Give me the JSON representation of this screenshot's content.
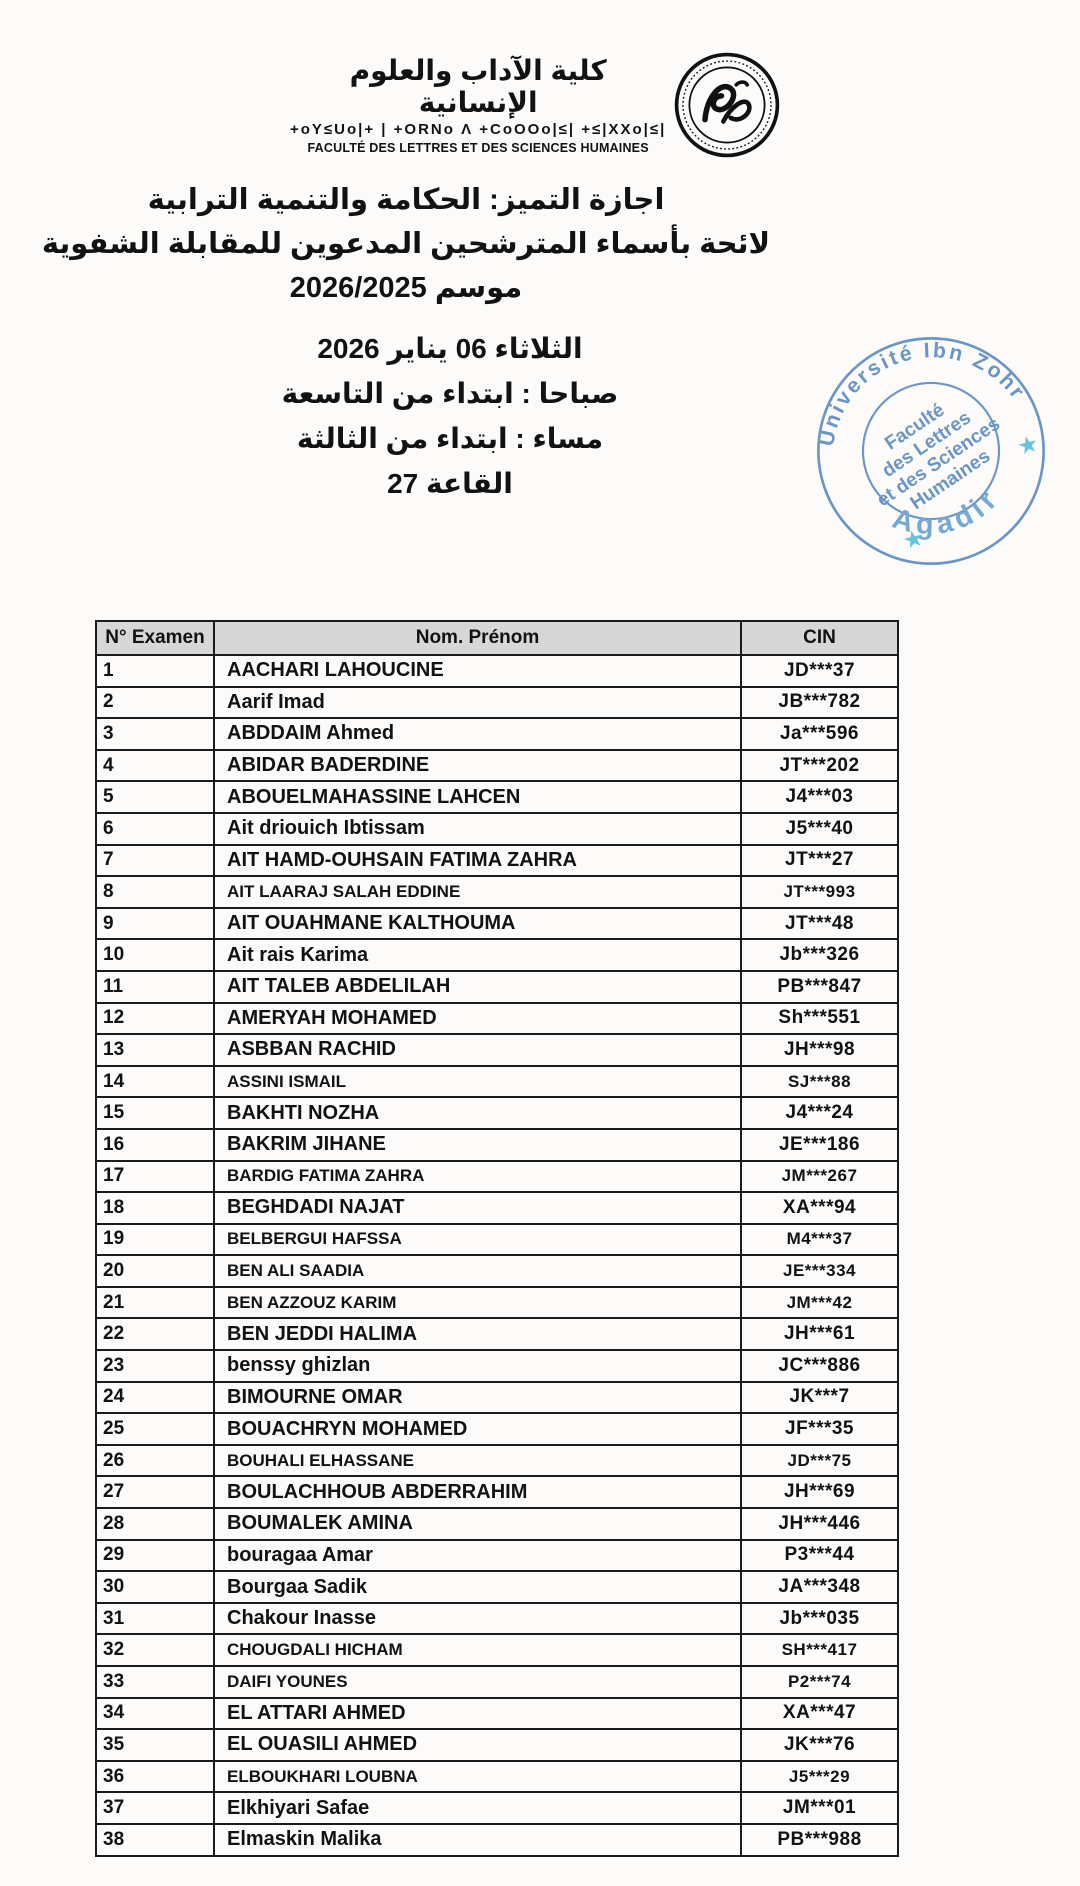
{
  "header": {
    "arabic_title": "كلية الآداب والعلوم الإنسانية",
    "tifinagh_line": "+oY≤Uo|+ | +ORNo Λ +CoOOo|≤| +≤|XXo|≤|",
    "french_title": "FACULTÉ DES LETTRES ET DES SCIENCES HUMAINES"
  },
  "announcement": {
    "line1": "اجازة التميز: الحكامة والتنمية الترابية",
    "line2": "لائحة بأسماء المترشحين المدعوين للمقابلة الشفوية",
    "line3": "موسم 2026/2025"
  },
  "schedule": {
    "date": "الثلاثاء 06 يناير 2026",
    "morning": "صباحا : ابتداء من التاسعة",
    "evening": "مساء : ابتداء من الثالثة",
    "room": "القاعة 27"
  },
  "stamp": {
    "top_text": "Université Ibn Zohr",
    "bottom_text": "Agadir",
    "center_lines": [
      "Faculté",
      "des Lettres",
      "et des Sciences",
      "Humaines"
    ],
    "color": "#4a80bd",
    "star_color": "#45b7dc"
  },
  "table": {
    "headers": [
      "N° Examen",
      "Nom. Prénom",
      "CIN"
    ],
    "rows": [
      {
        "n": "1",
        "name": "AACHARI LAHOUCINE",
        "cin": "JD***37"
      },
      {
        "n": "2",
        "name": "Aarif Imad",
        "cin": "JB***782"
      },
      {
        "n": "3",
        "name": "ABDDAIM Ahmed",
        "cin": "Ja***596"
      },
      {
        "n": "4",
        "name": "ABIDAR BADERDINE",
        "cin": "JT***202"
      },
      {
        "n": "5",
        "name": "ABOUELMAHASSINE LAHCEN",
        "cin": "J4***03"
      },
      {
        "n": "6",
        "name": "Ait driouich Ibtissam",
        "cin": "J5***40"
      },
      {
        "n": "7",
        "name": "AIT HAMD-OUHSAIN FATIMA ZAHRA",
        "cin": "JT***27"
      },
      {
        "n": "8",
        "name": "AIT LAARAJ SALAH EDDINE",
        "cin": "JT***993",
        "compact": true
      },
      {
        "n": "9",
        "name": "AIT OUAHMANE KALTHOUMA",
        "cin": "JT***48"
      },
      {
        "n": "10",
        "name": "Ait rais Karima",
        "cin": "Jb***326"
      },
      {
        "n": "11",
        "name": "AIT TALEB ABDELILAH",
        "cin": "PB***847"
      },
      {
        "n": "12",
        "name": "AMERYAH MOHAMED",
        "cin": "Sh***551"
      },
      {
        "n": "13",
        "name": "ASBBAN RACHID",
        "cin": "JH***98"
      },
      {
        "n": "14",
        "name": "ASSINI ISMAIL",
        "cin": "SJ***88",
        "compact": true
      },
      {
        "n": "15",
        "name": "BAKHTI NOZHA",
        "cin": "J4***24"
      },
      {
        "n": "16",
        "name": "BAKRIM JIHANE",
        "cin": "JE***186"
      },
      {
        "n": "17",
        "name": "BARDIG FATIMA ZAHRA",
        "cin": "JM***267",
        "compact": true
      },
      {
        "n": "18",
        "name": "BEGHDADI NAJAT",
        "cin": "XA***94"
      },
      {
        "n": "19",
        "name": "BELBERGUI HAFSSA",
        "cin": "M4***37",
        "compact": true
      },
      {
        "n": "20",
        "name": "BEN ALI SAADIA",
        "cin": "JE***334",
        "compact": true
      },
      {
        "n": "21",
        "name": "BEN AZZOUZ KARIM",
        "cin": "JM***42",
        "compact": true
      },
      {
        "n": "22",
        "name": "BEN JEDDI HALIMA",
        "cin": "JH***61"
      },
      {
        "n": "23",
        "name": "benssy ghizlan",
        "cin": "JC***886"
      },
      {
        "n": "24",
        "name": "BIMOURNE OMAR",
        "cin": "JK***7"
      },
      {
        "n": "25",
        "name": "BOUACHRYN MOHAMED",
        "cin": "JF***35"
      },
      {
        "n": "26",
        "name": "BOUHALI ELHASSANE",
        "cin": "JD***75",
        "compact": true
      },
      {
        "n": "27",
        "name": "BOULACHHOUB ABDERRAHIM",
        "cin": "JH***69"
      },
      {
        "n": "28",
        "name": "BOUMALEK AMINA",
        "cin": "JH***446"
      },
      {
        "n": "29",
        "name": "bouragaa Amar",
        "cin": "P3***44"
      },
      {
        "n": "30",
        "name": "Bourgaa Sadik",
        "cin": "JA***348"
      },
      {
        "n": "31",
        "name": "Chakour  Inasse",
        "cin": "Jb***035"
      },
      {
        "n": "32",
        "name": "CHOUGDALI HICHAM",
        "cin": "SH***417",
        "compact": true
      },
      {
        "n": "33",
        "name": "DAIFI YOUNES",
        "cin": "P2***74",
        "compact": true
      },
      {
        "n": "34",
        "name": "EL ATTARI AHMED",
        "cin": "XA***47"
      },
      {
        "n": "35",
        "name": "EL OUASILI AHMED",
        "cin": "JK***76"
      },
      {
        "n": "36",
        "name": "ELBOUKHARI LOUBNA",
        "cin": "J5***29",
        "compact": true
      },
      {
        "n": "37",
        "name": "Elkhiyari Safae",
        "cin": "JM***01"
      },
      {
        "n": "38",
        "name": "Elmaskin Malika",
        "cin": "PB***988"
      }
    ]
  }
}
